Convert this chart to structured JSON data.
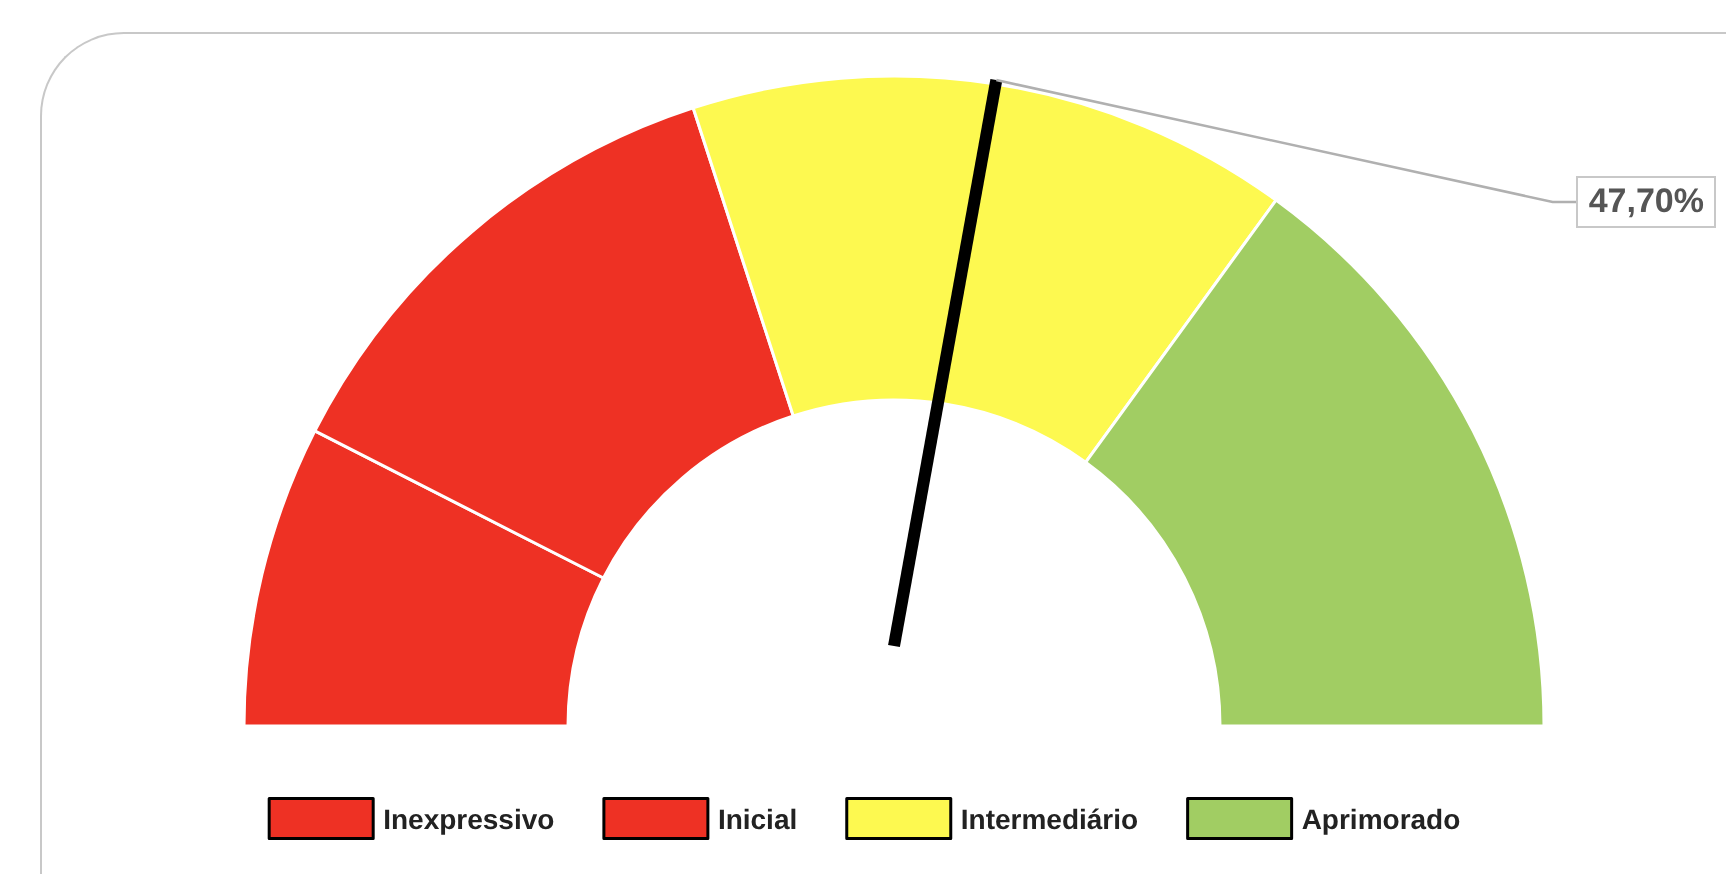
{
  "chart_data": {
    "type": "donut",
    "categories": [
      "Inexpressivo",
      "Inicial",
      "Intermediário",
      "Aprimorado"
    ],
    "values": [
      15,
      25,
      30,
      30
    ],
    "colors": [
      "#ee3124",
      "#ee3124",
      "#fdf950",
      "#a1cd63"
    ],
    "needle": "Intermediário",
    "legend": "bottom",
    "annotations": [
      "47,70%"
    ]
  }
}
